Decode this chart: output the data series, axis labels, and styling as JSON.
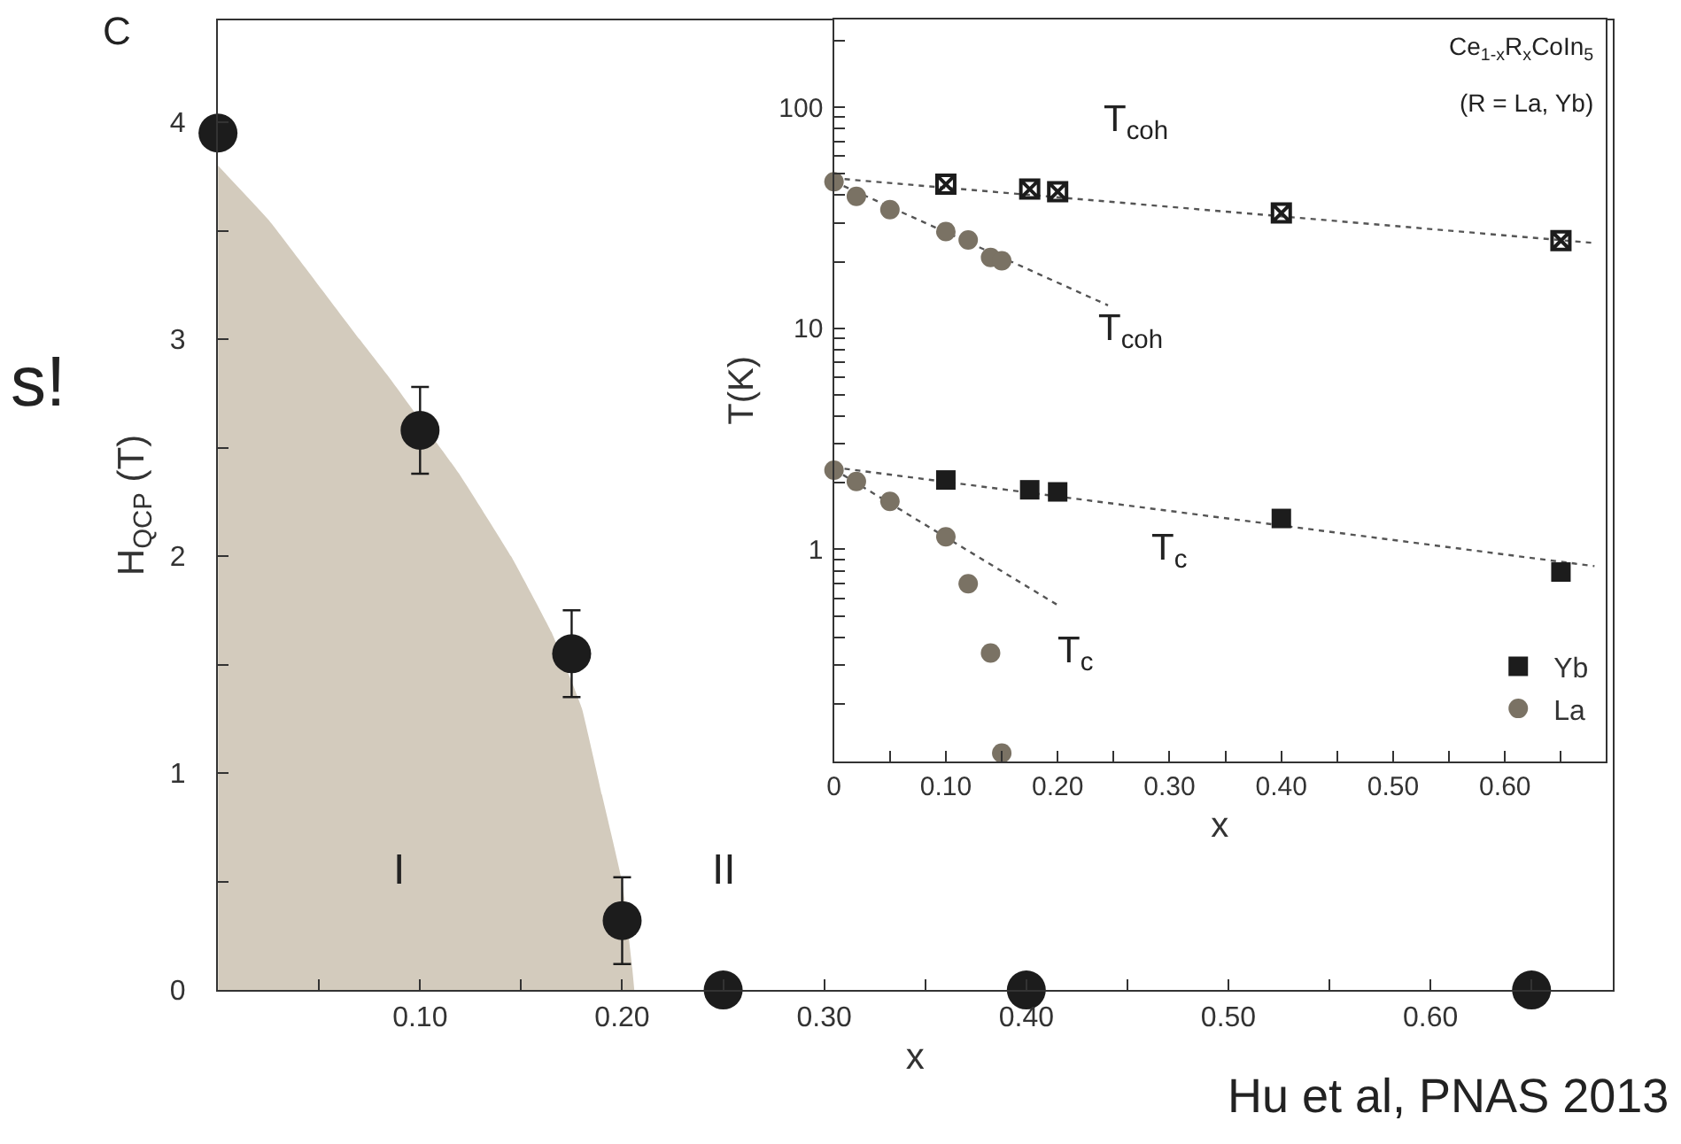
{
  "chart_data": [
    {
      "type": "scatter",
      "xlabel": "x",
      "ylabel": "H$_{QCP}$ (T)",
      "xlim": [
        0,
        0.69
      ],
      "ylim": [
        0,
        4.47
      ],
      "xticks": [
        {
          "value": 0.05,
          "label": null
        },
        {
          "value": 0.1,
          "label": "0.10"
        },
        {
          "value": 0.15,
          "label": null
        },
        {
          "value": 0.2,
          "label": "0.20"
        },
        {
          "value": 0.25,
          "label": null
        },
        {
          "value": 0.3,
          "label": "0.30"
        },
        {
          "value": 0.35,
          "label": null
        },
        {
          "value": 0.4,
          "label": "0.40"
        },
        {
          "value": 0.45,
          "label": null
        },
        {
          "value": 0.5,
          "label": "0.50"
        },
        {
          "value": 0.55,
          "label": null
        },
        {
          "value": 0.6,
          "label": "0.60"
        },
        {
          "value": 0.65,
          "label": null
        }
      ],
      "yticks": [
        0,
        {
          "value": 0.5,
          "label": null
        },
        1,
        {
          "value": 1.5,
          "label": null
        },
        2,
        {
          "value": 2.5,
          "label": null
        },
        3,
        {
          "value": 3.5,
          "label": null
        },
        4
      ],
      "legend": false,
      "annotations": [
        "C",
        "s!",
        "Hu et al, PNAS 2013",
        "I",
        "II"
      ],
      "series": [
        {
          "type": "area",
          "color": "#d3cbbd",
          "x": [
            0,
            0.025,
            0.07,
            0.085,
            0.12,
            0.145,
            0.165,
            0.18,
            0.19,
            0.2,
            0.205,
            0.206
          ],
          "values": [
            3.8,
            3.55,
            3.0,
            2.82,
            2.37,
            2.0,
            1.65,
            1.3,
            0.9,
            0.5,
            0.1,
            0
          ]
        },
        {
          "marker": "circle",
          "color": "#1c1c1c",
          "x": [
            0,
            0.1,
            0.175,
            0.2,
            0.25,
            0.4,
            0.65
          ],
          "values": [
            3.95,
            2.58,
            1.55,
            0.32,
            0,
            0,
            0
          ],
          "errors": [
            null,
            0.2,
            0.2,
            0.2,
            null,
            null,
            null
          ]
        }
      ]
    },
    {
      "type": "scatter",
      "xlabel": "x",
      "ylabel": "T(K)",
      "log": "y",
      "xlim": [
        0,
        0.69
      ],
      "ylim": [
        0.11,
        250
      ],
      "xticks": [
        0,
        {
          "value": 0.05,
          "label": null
        },
        {
          "value": 0.1,
          "label": "0.10"
        },
        {
          "value": 0.15,
          "label": null
        },
        {
          "value": 0.2,
          "label": "0.20"
        },
        {
          "value": 0.25,
          "label": null
        },
        {
          "value": 0.3,
          "label": "0.30"
        },
        {
          "value": 0.35,
          "label": null
        },
        {
          "value": 0.4,
          "label": "0.40"
        },
        {
          "value": 0.45,
          "label": null
        },
        {
          "value": 0.5,
          "label": "0.50"
        },
        {
          "value": 0.55,
          "label": null
        },
        {
          "value": 0.6,
          "label": "0.60"
        },
        {
          "value": 0.65,
          "label": null
        }
      ],
      "yticks": [
        {
          "value": 0.2,
          "label": null
        },
        {
          "value": 0.3,
          "label": null
        },
        {
          "value": 0.4,
          "label": null
        },
        {
          "value": 0.5,
          "label": null
        },
        {
          "value": 0.6,
          "label": null
        },
        {
          "value": 0.7,
          "label": null
        },
        {
          "value": 0.8,
          "label": null
        },
        {
          "value": 0.9,
          "label": null
        },
        1,
        {
          "value": 2,
          "label": null
        },
        {
          "value": 3,
          "label": null
        },
        {
          "value": 4,
          "label": null
        },
        {
          "value": 5,
          "label": null
        },
        {
          "value": 6,
          "label": null
        },
        {
          "value": 7,
          "label": null
        },
        {
          "value": 8,
          "label": null
        },
        {
          "value": 9,
          "label": null
        },
        10,
        {
          "value": 20,
          "label": null
        },
        {
          "value": 30,
          "label": null
        },
        {
          "value": 40,
          "label": null
        },
        {
          "value": 50,
          "label": null
        },
        {
          "value": 60,
          "label": null
        },
        {
          "value": 70,
          "label": null
        },
        {
          "value": 80,
          "label": null
        },
        {
          "value": 90,
          "label": null
        },
        100,
        {
          "value": 200,
          "label": null
        }
      ],
      "legend": "bottom right",
      "annotations": [
        "Ce$_{1-x}$R$_{x}$CoIn$_{5}$",
        "(R = La, Yb)",
        "T$_{coh}$",
        "T$_{coh}$",
        "T$_{c}$",
        "T$_{c}$"
      ],
      "series": [
        {
          "type": "line",
          "line_style": "dotted",
          "color": "#555555",
          "x": [
            0,
            0.68
          ],
          "values": [
            47.7,
            24.3
          ]
        },
        {
          "type": "line",
          "line_style": "dotted",
          "color": "#555555",
          "x": [
            0,
            0.245
          ],
          "values": [
            46,
            12.7
          ]
        },
        {
          "type": "line",
          "line_style": "dotted",
          "color": "#555555",
          "x": [
            0,
            0.68
          ],
          "values": [
            2.35,
            0.84
          ]
        },
        {
          "type": "line",
          "line_style": "dotted",
          "color": "#555555",
          "x": [
            0,
            0.201
          ],
          "values": [
            2.3,
            0.556
          ]
        },
        {
          "marker": "circle",
          "color": "#7a7264",
          "x": [
            0,
            0.02,
            0.05,
            0.1,
            0.12,
            0.14,
            0.15
          ],
          "values": [
            46,
            39.5,
            34.4,
            27.4,
            25.1,
            20.9,
            20.2
          ]
        },
        {
          "marker": "cross",
          "color": "#1c1c1c",
          "x": [
            0.1,
            0.175,
            0.2,
            0.4,
            0.65
          ],
          "values": [
            44.8,
            42.6,
            41.5,
            33.2,
            24.9
          ]
        },
        {
          "marker": "square",
          "name": "Yb",
          "color": "#1c1c1c",
          "x": [
            0.1,
            0.175,
            0.2,
            0.4,
            0.65
          ],
          "values": [
            2.06,
            1.86,
            1.82,
            1.38,
            0.79
          ]
        },
        {
          "marker": "circle",
          "name": "La",
          "color": "#7a7264",
          "x": [
            0,
            0.02,
            0.05,
            0.1,
            0.12,
            0.14,
            0.15
          ],
          "values": [
            2.28,
            2.03,
            1.65,
            1.14,
            0.7,
            0.34,
            0.12
          ]
        }
      ]
    }
  ]
}
